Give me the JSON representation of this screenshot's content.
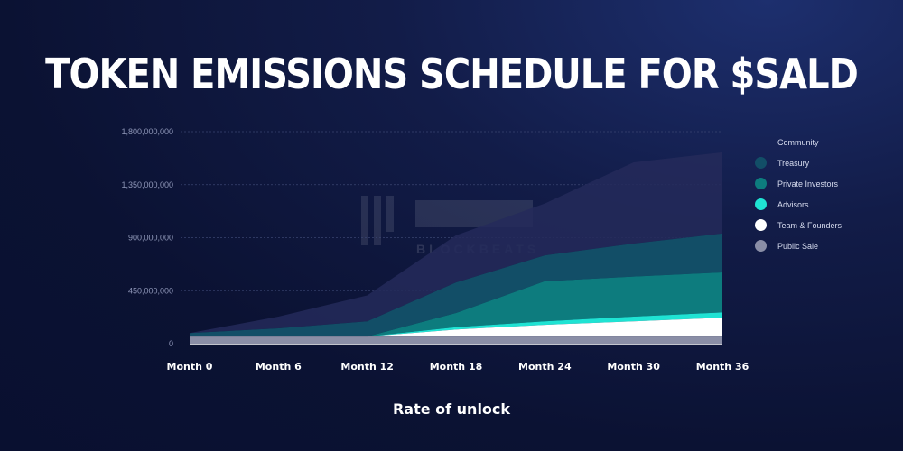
{
  "title": "TOKEN EMISSIONS SCHEDULE FOR $SALD",
  "watermark": "BLOCKBEATS",
  "chart_data": {
    "type": "area",
    "stacked": true,
    "title": "TOKEN EMISSIONS SCHEDULE FOR $SALD",
    "xlabel": "Rate of unlock",
    "ylabel": "",
    "categories": [
      "Month 0",
      "Month 6",
      "Month 12",
      "Month 18",
      "Month 24",
      "Month 30",
      "Month 36"
    ],
    "yticks": [
      "1,800,000,000",
      "1,350,000,000",
      "900,000,000",
      "450,000,000",
      "0"
    ],
    "ylim": [
      0,
      1800000000
    ],
    "grid": true,
    "legend_position": "right",
    "series": [
      {
        "name": "Public Sale",
        "color": "#8a8ea6",
        "values": [
          60000000,
          60000000,
          60000000,
          60000000,
          60000000,
          60000000,
          60000000
        ]
      },
      {
        "name": "Team & Founders",
        "color": "#ffffff",
        "values": [
          0,
          0,
          0,
          60000000,
          100000000,
          130000000,
          160000000
        ]
      },
      {
        "name": "Advisors",
        "color": "#1fe3d3",
        "values": [
          0,
          0,
          0,
          20000000,
          30000000,
          40000000,
          45000000
        ]
      },
      {
        "name": "Private Investors",
        "color": "#0d7c7e",
        "values": [
          0,
          0,
          0,
          120000000,
          340000000,
          340000000,
          340000000
        ]
      },
      {
        "name": "Treasury",
        "color": "#124e67",
        "values": [
          30000000,
          70000000,
          130000000,
          260000000,
          220000000,
          280000000,
          330000000
        ]
      },
      {
        "name": "Community",
        "color": "#242a5a",
        "values": [
          0,
          100000000,
          220000000,
          400000000,
          440000000,
          690000000,
          690000000
        ]
      }
    ]
  },
  "legend_order": [
    "Community",
    "Treasury",
    "Private Investors",
    "Advisors",
    "Team & Founders",
    "Public Sale"
  ]
}
